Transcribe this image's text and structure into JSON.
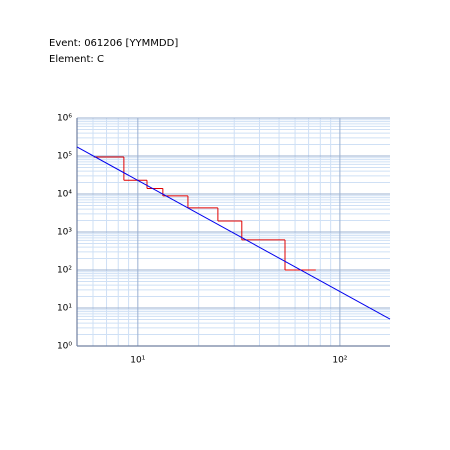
{
  "chart_data": {
    "type": "step-histogram",
    "annotations": [
      "Event: 061206 [YYMMDD]",
      "Element: C"
    ],
    "xscale": "log",
    "yscale": "log",
    "grid": true,
    "xlim": [
      5,
      177
    ],
    "ylim": [
      1,
      1000000
    ],
    "xticks": [
      {
        "value": 10,
        "label": "10¹"
      },
      {
        "value": 100,
        "label": "10²"
      }
    ],
    "yticks": [
      {
        "value": 1,
        "label": "10⁰"
      },
      {
        "value": 10,
        "label": "10¹"
      },
      {
        "value": 100,
        "label": "10²"
      },
      {
        "value": 1000,
        "label": "10³"
      },
      {
        "value": 10000,
        "label": "10⁴"
      },
      {
        "value": 100000,
        "label": "10⁵"
      },
      {
        "value": 1000000,
        "label": "10⁶"
      }
    ],
    "histogram": {
      "color": "#e00000",
      "bins": [
        6.05,
        8.53,
        11.1,
        13.3,
        17.7,
        24.9,
        32.7,
        53.5,
        76
      ],
      "values": [
        94000,
        23000,
        14000,
        8900,
        4300,
        1950,
        620,
        100
      ]
    },
    "fit": {
      "color": "#0000ee",
      "x": [
        5,
        177
      ],
      "values": [
        173000,
        5.1
      ]
    }
  }
}
